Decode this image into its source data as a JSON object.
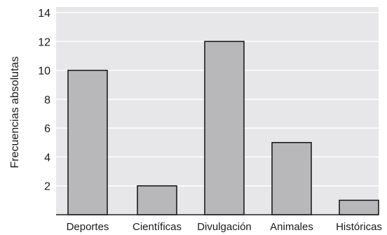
{
  "chart_data": {
    "type": "bar",
    "categories": [
      "Deportes",
      "Científicas",
      "Divulgación",
      "Animales",
      "Históricas"
    ],
    "values": [
      10,
      2,
      12,
      5,
      1
    ],
    "xlabel": "",
    "ylabel": "Frecuencias absolutas",
    "ylim": [
      0,
      14
    ],
    "yticks": [
      2,
      4,
      6,
      8,
      10,
      12,
      14
    ],
    "grid": "horizontal",
    "legend": "none",
    "colors": {
      "bar_fill": "#b8b8bb",
      "bar_stroke": "#111111",
      "plot_bg": "#e7e7e9",
      "grid": "#ffffff",
      "axis": "#222222"
    }
  }
}
